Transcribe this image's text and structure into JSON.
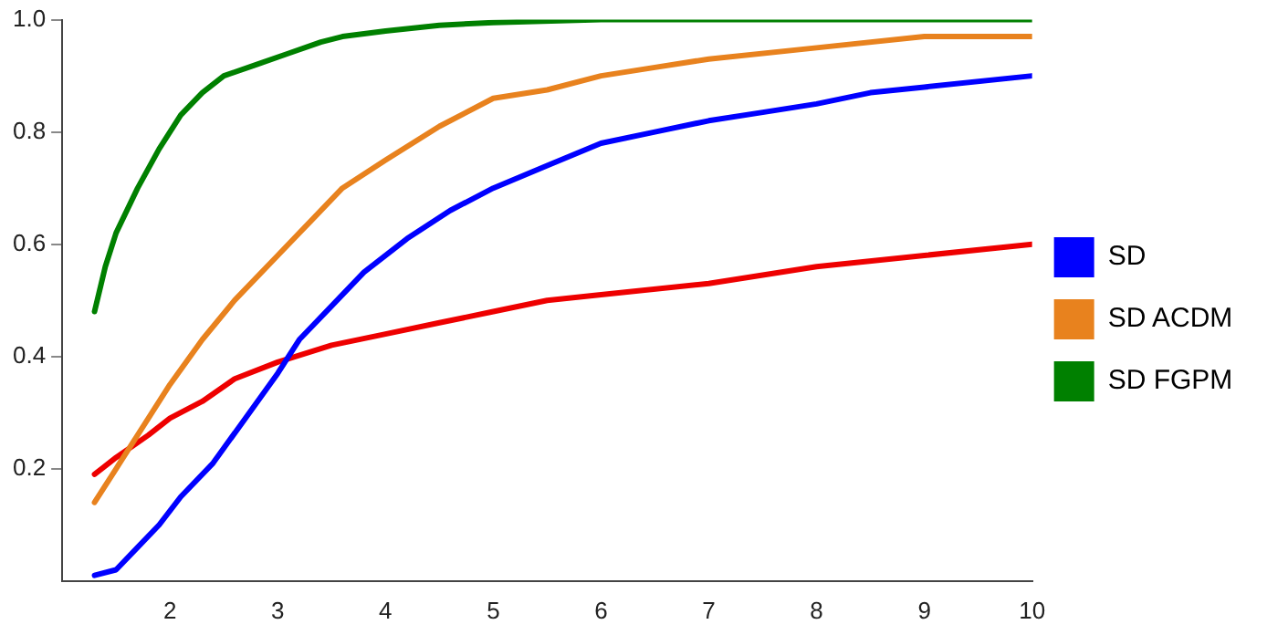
{
  "chart_data": {
    "type": "line",
    "xlim": [
      1,
      10
    ],
    "ylim": [
      0,
      1
    ],
    "xticks": [
      2,
      3,
      4,
      5,
      6,
      7,
      8,
      9,
      10
    ],
    "yticks": [
      0.2,
      0.4,
      0.6,
      0.8,
      {
        "value": 1,
        "label": "1.0"
      }
    ],
    "grid": false,
    "legend": "right",
    "marker": "none",
    "line_style": "solid",
    "series": [
      {
        "name": "SD",
        "color": "#0000ff",
        "x": [
          1.3,
          1.5,
          1.7,
          1.9,
          2.1,
          2.4,
          2.7,
          3.0,
          3.2,
          3.5,
          3.8,
          4.2,
          4.6,
          5,
          5.5,
          6,
          6.5,
          7,
          7.5,
          8,
          8.5,
          9,
          10
        ],
        "values": [
          0.01,
          0.02,
          0.06,
          0.1,
          0.15,
          0.21,
          0.29,
          0.37,
          0.43,
          0.49,
          0.55,
          0.61,
          0.66,
          0.7,
          0.74,
          0.78,
          0.8,
          0.82,
          0.835,
          0.85,
          0.87,
          0.88,
          0.9
        ]
      },
      {
        "name": "SD ACDM",
        "color": "#e8821e",
        "x": [
          1.3,
          1.5,
          1.8,
          2.0,
          2.3,
          2.6,
          3.0,
          3.3,
          3.6,
          4.0,
          4.5,
          5,
          5.5,
          6,
          6.5,
          7,
          8,
          9,
          10
        ],
        "values": [
          0.14,
          0.2,
          0.29,
          0.35,
          0.43,
          0.5,
          0.58,
          0.64,
          0.7,
          0.75,
          0.81,
          0.86,
          0.875,
          0.9,
          0.915,
          0.93,
          0.95,
          0.97,
          0.97
        ]
      },
      {
        "name": "SD FGPM",
        "color": "#008000",
        "x": [
          1.3,
          1.4,
          1.5,
          1.7,
          1.9,
          2.1,
          2.3,
          2.5,
          2.8,
          3.1,
          3.4,
          3.6,
          4,
          4.5,
          5,
          6,
          10
        ],
        "values": [
          0.48,
          0.56,
          0.62,
          0.7,
          0.77,
          0.83,
          0.87,
          0.9,
          0.92,
          0.94,
          0.96,
          0.97,
          0.98,
          0.99,
          0.995,
          1.0,
          1.0
        ]
      },
      {
        "color": "#ee0000",
        "x": [
          1.3,
          1.5,
          1.8,
          2.0,
          2.3,
          2.6,
          3.0,
          3.5,
          4,
          4.5,
          5,
          5.5,
          6,
          7,
          8,
          9,
          10
        ],
        "values": [
          0.19,
          0.22,
          0.26,
          0.29,
          0.32,
          0.36,
          0.39,
          0.42,
          0.44,
          0.46,
          0.48,
          0.5,
          0.51,
          0.53,
          0.56,
          0.58,
          0.6
        ]
      }
    ]
  }
}
